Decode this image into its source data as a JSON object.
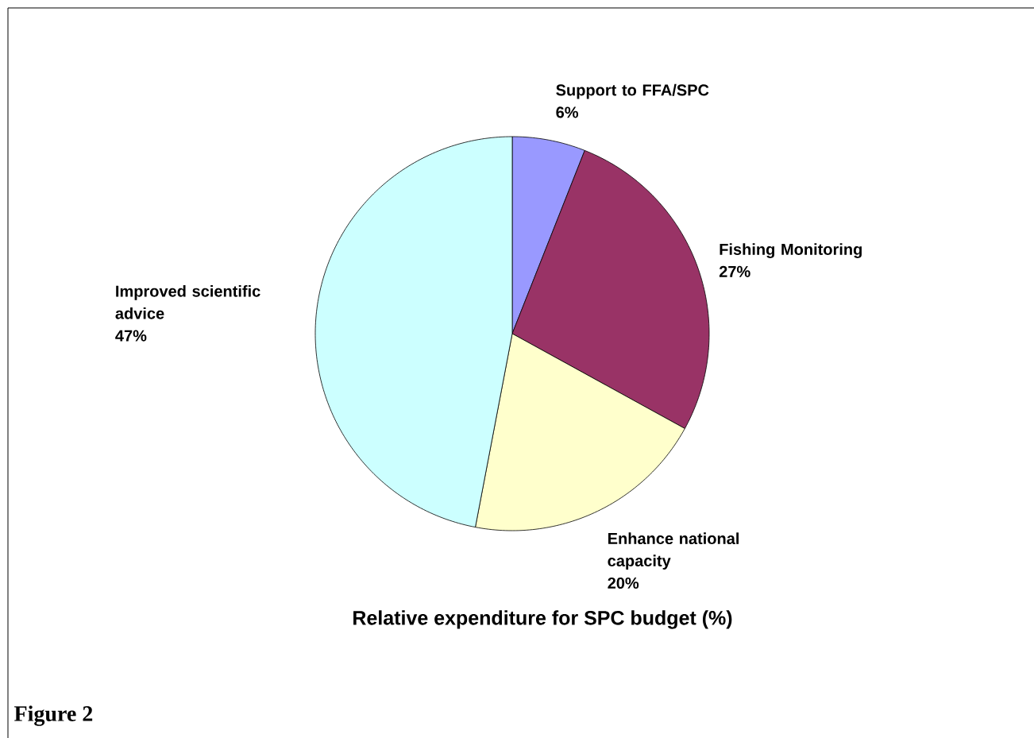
{
  "chart_data": {
    "type": "pie",
    "title": "Relative expenditure for SPC budget (%)",
    "categories": [
      "Support to FFA/SPC",
      "Fishing Monitoring",
      "Enhance national capacity",
      "Improved scientific advice"
    ],
    "values": [
      6,
      27,
      20,
      47
    ],
    "value_labels": [
      "6%",
      "27%",
      "20%",
      "47%"
    ],
    "colors": [
      "#9999ff",
      "#993366",
      "#ffffcc",
      "#ccffff"
    ],
    "annotations": [
      "Figure 2"
    ]
  }
}
